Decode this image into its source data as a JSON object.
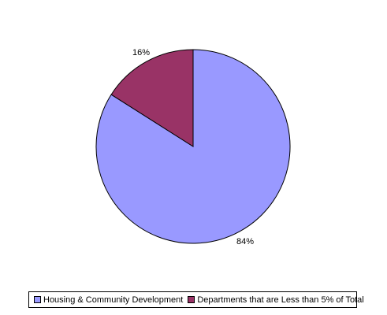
{
  "chart_data": {
    "type": "pie",
    "title": "",
    "series": [
      {
        "name": "Housing & Community Development",
        "value": 84,
        "label": "84%",
        "color": "#9999FF"
      },
      {
        "name": "Departments that are Less than 5% of Total",
        "value": 16,
        "label": "16%",
        "color": "#993366"
      }
    ],
    "start_angle": "12 o'clock",
    "direction": "clockwise",
    "legend_position": "bottom"
  }
}
